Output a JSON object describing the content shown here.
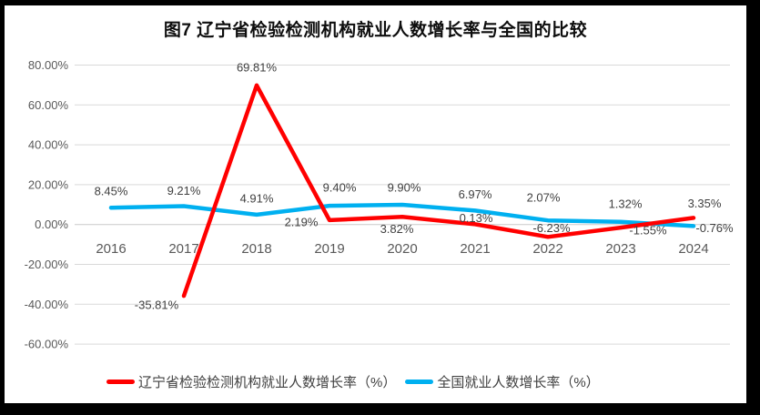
{
  "colors": {
    "frame": "#000000",
    "surface": "#ffffff",
    "grid": "#d9d9d9",
    "zero_line": "#c9c9c9",
    "axis_text": "#595959",
    "data_label_text": "#404040",
    "title_text": "#0d0d0d",
    "liaoning_red": "#ff0000",
    "national_blue": "#00b0f0"
  },
  "chart_data": {
    "type": "line",
    "title": "图7 辽宁省检验检测机构就业人数增长率与全国的比较",
    "categories": [
      "2016",
      "2017",
      "2018",
      "2019",
      "2020",
      "2021",
      "2022",
      "2023",
      "2024"
    ],
    "y_axis": {
      "min": -60,
      "max": 80,
      "step": 20,
      "tick_labels": [
        "80.00%",
        "60.00%",
        "40.00%",
        "20.00%",
        "0.00%",
        "-20.00%",
        "-40.00%",
        "-60.00%"
      ],
      "tick_values": [
        80,
        60,
        40,
        20,
        0,
        -20,
        -40,
        -60
      ]
    },
    "grid": true,
    "legend_position": "bottom",
    "series": [
      {
        "id": "liaoning",
        "name": "辽宁省检验检测机构就业人数增长率（%）",
        "color": "#ff0000",
        "points": [
          {
            "category": "2017",
            "value": -35.81,
            "label": "-35.81%",
            "label_dx": -30,
            "label_dy": 10
          },
          {
            "category": "2018",
            "value": 69.81,
            "label": "69.81%",
            "label_dx": 0,
            "label_dy": -20
          },
          {
            "category": "2019",
            "value": 2.19,
            "label": "2.19%",
            "label_dx": -31,
            "label_dy": 2
          },
          {
            "category": "2020",
            "value": 3.82,
            "label": "3.82%",
            "label_dx": -6,
            "label_dy": 13
          },
          {
            "category": "2021",
            "value": 0.13,
            "label": "0.13%",
            "label_dx": 1,
            "label_dy": -7
          },
          {
            "category": "2022",
            "value": -6.23,
            "label": "-6.23%",
            "label_dx": 4,
            "label_dy": -10
          },
          {
            "category": "2023",
            "value": -1.55,
            "label": "-1.55%",
            "label_dx": 30,
            "label_dy": 3
          },
          {
            "category": "2024",
            "value": 3.35,
            "label": "3.35%",
            "label_dx": 12,
            "label_dy": -16
          }
        ]
      },
      {
        "id": "national",
        "name": "全国就业人数增长率（%）",
        "color": "#00b0f0",
        "points": [
          {
            "category": "2016",
            "value": 8.45,
            "label": "8.45%",
            "label_dx": 0,
            "label_dy": -18
          },
          {
            "category": "2017",
            "value": 9.21,
            "label": "9.21%",
            "label_dx": 0,
            "label_dy": -17
          },
          {
            "category": "2018",
            "value": 4.91,
            "label": "4.91%",
            "label_dx": 0,
            "label_dy": -18
          },
          {
            "category": "2019",
            "value": 9.4,
            "label": "9.40%",
            "label_dx": 11,
            "label_dy": -20
          },
          {
            "category": "2020",
            "value": 9.9,
            "label": "9.90%",
            "label_dx": 2,
            "label_dy": -19
          },
          {
            "category": "2021",
            "value": 6.97,
            "label": "6.97%",
            "label_dx": 0,
            "label_dy": -18
          },
          {
            "category": "2022",
            "value": 2.07,
            "label": "2.07%",
            "label_dx": -5,
            "label_dy": -25
          },
          {
            "category": "2023",
            "value": 1.32,
            "label": "1.32%",
            "label_dx": 5,
            "label_dy": -20
          },
          {
            "category": "2024",
            "value": -0.76,
            "label": "-0.76%",
            "label_dx": 23,
            "label_dy": 2
          }
        ]
      }
    ]
  },
  "legend": {
    "items": [
      {
        "label": "辽宁省检验检测机构就业人数增长率（%）",
        "color": "#ff0000"
      },
      {
        "label": "全国就业人数增长率（%）",
        "color": "#00b0f0"
      }
    ]
  }
}
